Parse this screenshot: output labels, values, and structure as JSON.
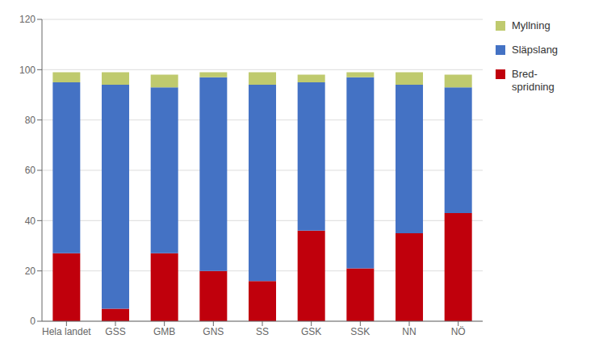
{
  "chart_data": {
    "type": "bar",
    "stacked": true,
    "categories": [
      "Hela landet",
      "GSS",
      "GMB",
      "GNS",
      "SS",
      "GSK",
      "SSK",
      "NN",
      "NÖ"
    ],
    "series": [
      {
        "name": "Bred-\nspridning",
        "color": "#C0000C",
        "values": [
          27,
          5,
          27,
          20,
          16,
          36,
          21,
          35,
          43
        ]
      },
      {
        "name": "Släpslang",
        "color": "#4472C4",
        "values": [
          68,
          89,
          66,
          77,
          78,
          59,
          76,
          59,
          50
        ]
      },
      {
        "name": "Myllning",
        "color": "#BFCA6E",
        "values": [
          4,
          5,
          5,
          2,
          5,
          3,
          2,
          5,
          5
        ]
      }
    ],
    "ylim": [
      0,
      120
    ],
    "yticks": [
      0,
      20,
      40,
      60,
      80,
      100,
      120
    ],
    "grid": true,
    "legend": "upper right"
  }
}
